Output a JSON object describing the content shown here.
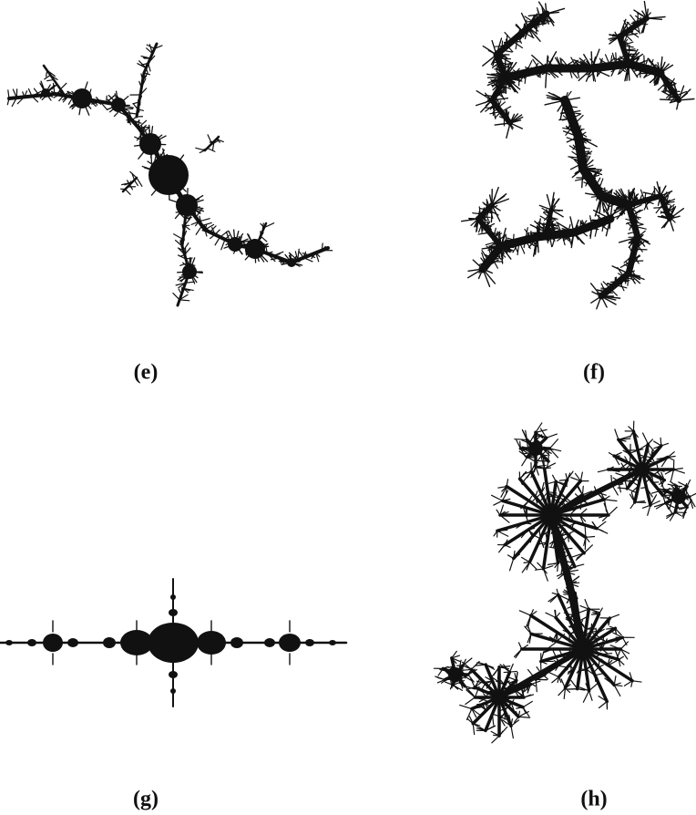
{
  "figure": {
    "panels": [
      {
        "label": "(e)"
      },
      {
        "label": "(f)"
      },
      {
        "label": "(g)"
      },
      {
        "label": "(h)"
      }
    ]
  }
}
